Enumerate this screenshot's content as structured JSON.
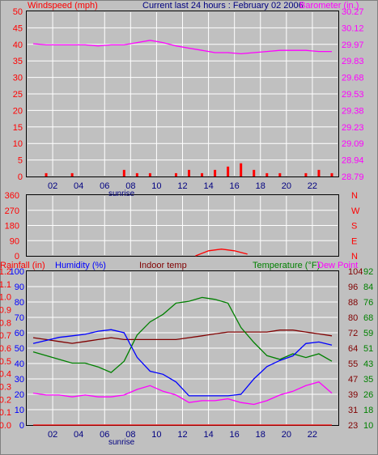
{
  "header": {
    "title": "Current last 24 hours : February 02 2006",
    "left_label": "Windspeed (mph)",
    "right_label": "Barometer (in.)"
  },
  "colors": {
    "background": "#c0c0c0",
    "grid": "#ffffff",
    "frame": "#000000",
    "wind": "#ff0000",
    "gust": "#0000ff",
    "barometer": "#ff00ff",
    "humidity": "#0000ff",
    "indoor_temp": "#800000",
    "temperature": "#008000",
    "dew_point": "#ff00ff",
    "rainfall": "#ff0000"
  },
  "hour_ticks": [
    "02",
    "04",
    "06",
    "08",
    "10",
    "12",
    "14",
    "16",
    "18",
    "20",
    "22"
  ],
  "sunrise_label": "sunrise",
  "panel1": {
    "wind_ticks": [
      "50",
      "45",
      "40",
      "35",
      "30",
      "25",
      "20",
      "15",
      "10",
      "5",
      "0"
    ],
    "baro_ticks": [
      "30.27",
      "30.12",
      "29.97",
      "29.83",
      "29.68",
      "29.53",
      "29.38",
      "29.23",
      "29.09",
      "28.94",
      "28.79"
    ]
  },
  "panel2": {
    "dir_ticks": [
      "360",
      "270",
      "180",
      "90",
      "0"
    ],
    "compass_ticks": [
      "N",
      "W",
      "S",
      "E",
      "N"
    ]
  },
  "panel3": {
    "labels": {
      "rain": "Rainfall (in)",
      "humidity": "Humidity (%)",
      "indoor": "Indoor temp",
      "temperature": "Temperature (°F)",
      "dew": "Dew Point"
    },
    "rain_ticks": [
      "1.2",
      "1.1",
      "1.0",
      "0.9",
      "0.8",
      "0.7",
      "0.6",
      "0.5",
      "0.4",
      "0.3",
      "0.2",
      "0.1",
      "0.0"
    ],
    "hum_ticks": [
      "100",
      "90",
      "80",
      "70",
      "60",
      "50",
      "40",
      "30",
      "20",
      "10",
      "0"
    ],
    "indoor_ticks": [
      "104",
      "96",
      "88",
      "80",
      "72",
      "64",
      "55",
      "47",
      "39",
      "31",
      "23"
    ],
    "temp_ticks": [
      "92",
      "84",
      "76",
      "68",
      "59",
      "51",
      "43",
      "35",
      "26",
      "18",
      "10"
    ]
  },
  "chart_data": [
    {
      "type": "line",
      "title": "Current last 24 hours : February 02 2006",
      "x": [
        0,
        1,
        2,
        3,
        4,
        5,
        6,
        7,
        8,
        9,
        10,
        11,
        12,
        13,
        14,
        15,
        16,
        17,
        18,
        19,
        20,
        21,
        22,
        23
      ],
      "series": [
        {
          "name": "Windspeed (mph)",
          "values": [
            0,
            1,
            0,
            1,
            0,
            0,
            0,
            2,
            1,
            1,
            0,
            1,
            2,
            1,
            2,
            3,
            4,
            2,
            1,
            1,
            0,
            1,
            2,
            1
          ],
          "axis": "left",
          "ylim": [
            0,
            50
          ]
        },
        {
          "name": "Barometer (in.)",
          "values": [
            29.98,
            29.97,
            29.97,
            29.97,
            29.97,
            29.96,
            29.97,
            29.97,
            29.99,
            30.01,
            29.99,
            29.96,
            29.94,
            29.92,
            29.9,
            29.9,
            29.89,
            29.9,
            29.91,
            29.92,
            29.92,
            29.92,
            29.91,
            29.91
          ],
          "axis": "right",
          "ylim": [
            28.79,
            30.27
          ]
        }
      ]
    },
    {
      "type": "line",
      "x": [
        13,
        14,
        15,
        16,
        17
      ],
      "series": [
        {
          "name": "Wind direction",
          "values": [
            0,
            30,
            40,
            30,
            10
          ],
          "ylim": [
            0,
            360
          ]
        }
      ]
    },
    {
      "type": "line",
      "x": [
        0,
        1,
        2,
        3,
        4,
        5,
        6,
        7,
        8,
        9,
        10,
        11,
        12,
        13,
        14,
        15,
        16,
        17,
        18,
        19,
        20,
        21,
        22,
        23
      ],
      "series": [
        {
          "name": "Humidity (%)",
          "values": [
            53,
            55,
            57,
            58,
            59,
            61,
            62,
            60,
            44,
            35,
            33,
            28,
            19,
            19,
            19,
            19,
            20,
            30,
            38,
            42,
            45,
            53,
            54,
            52
          ],
          "ylim": [
            0,
            100
          ]
        },
        {
          "name": "Indoor temp",
          "values": [
            69,
            68,
            67,
            66,
            67,
            68,
            69,
            68,
            68,
            68,
            68,
            68,
            69,
            70,
            71,
            72,
            72,
            72,
            72,
            73,
            73,
            72,
            71,
            70
          ],
          "ylim": [
            23,
            104
          ]
        },
        {
          "name": "Temperature (°F)",
          "values": [
            49,
            47,
            45,
            43,
            43,
            41,
            38,
            44,
            58,
            65,
            69,
            75,
            76,
            78,
            77,
            75,
            62,
            54,
            47,
            45,
            48,
            46,
            48,
            44
          ],
          "ylim": [
            10,
            92
          ]
        },
        {
          "name": "Dew Point",
          "values": [
            27,
            26,
            26,
            25,
            26,
            25,
            25,
            26,
            29,
            31,
            28,
            26,
            22,
            23,
            23,
            24,
            22,
            21,
            23,
            26,
            28,
            31,
            33,
            27
          ],
          "ylim": [
            10,
            92
          ]
        },
        {
          "name": "Rainfall (in)",
          "values": [
            0,
            0,
            0,
            0,
            0,
            0,
            0,
            0,
            0,
            0,
            0,
            0,
            0,
            0,
            0,
            0,
            0,
            0,
            0,
            0,
            0,
            0,
            0,
            0
          ],
          "ylim": [
            0,
            1.2
          ]
        }
      ]
    }
  ]
}
